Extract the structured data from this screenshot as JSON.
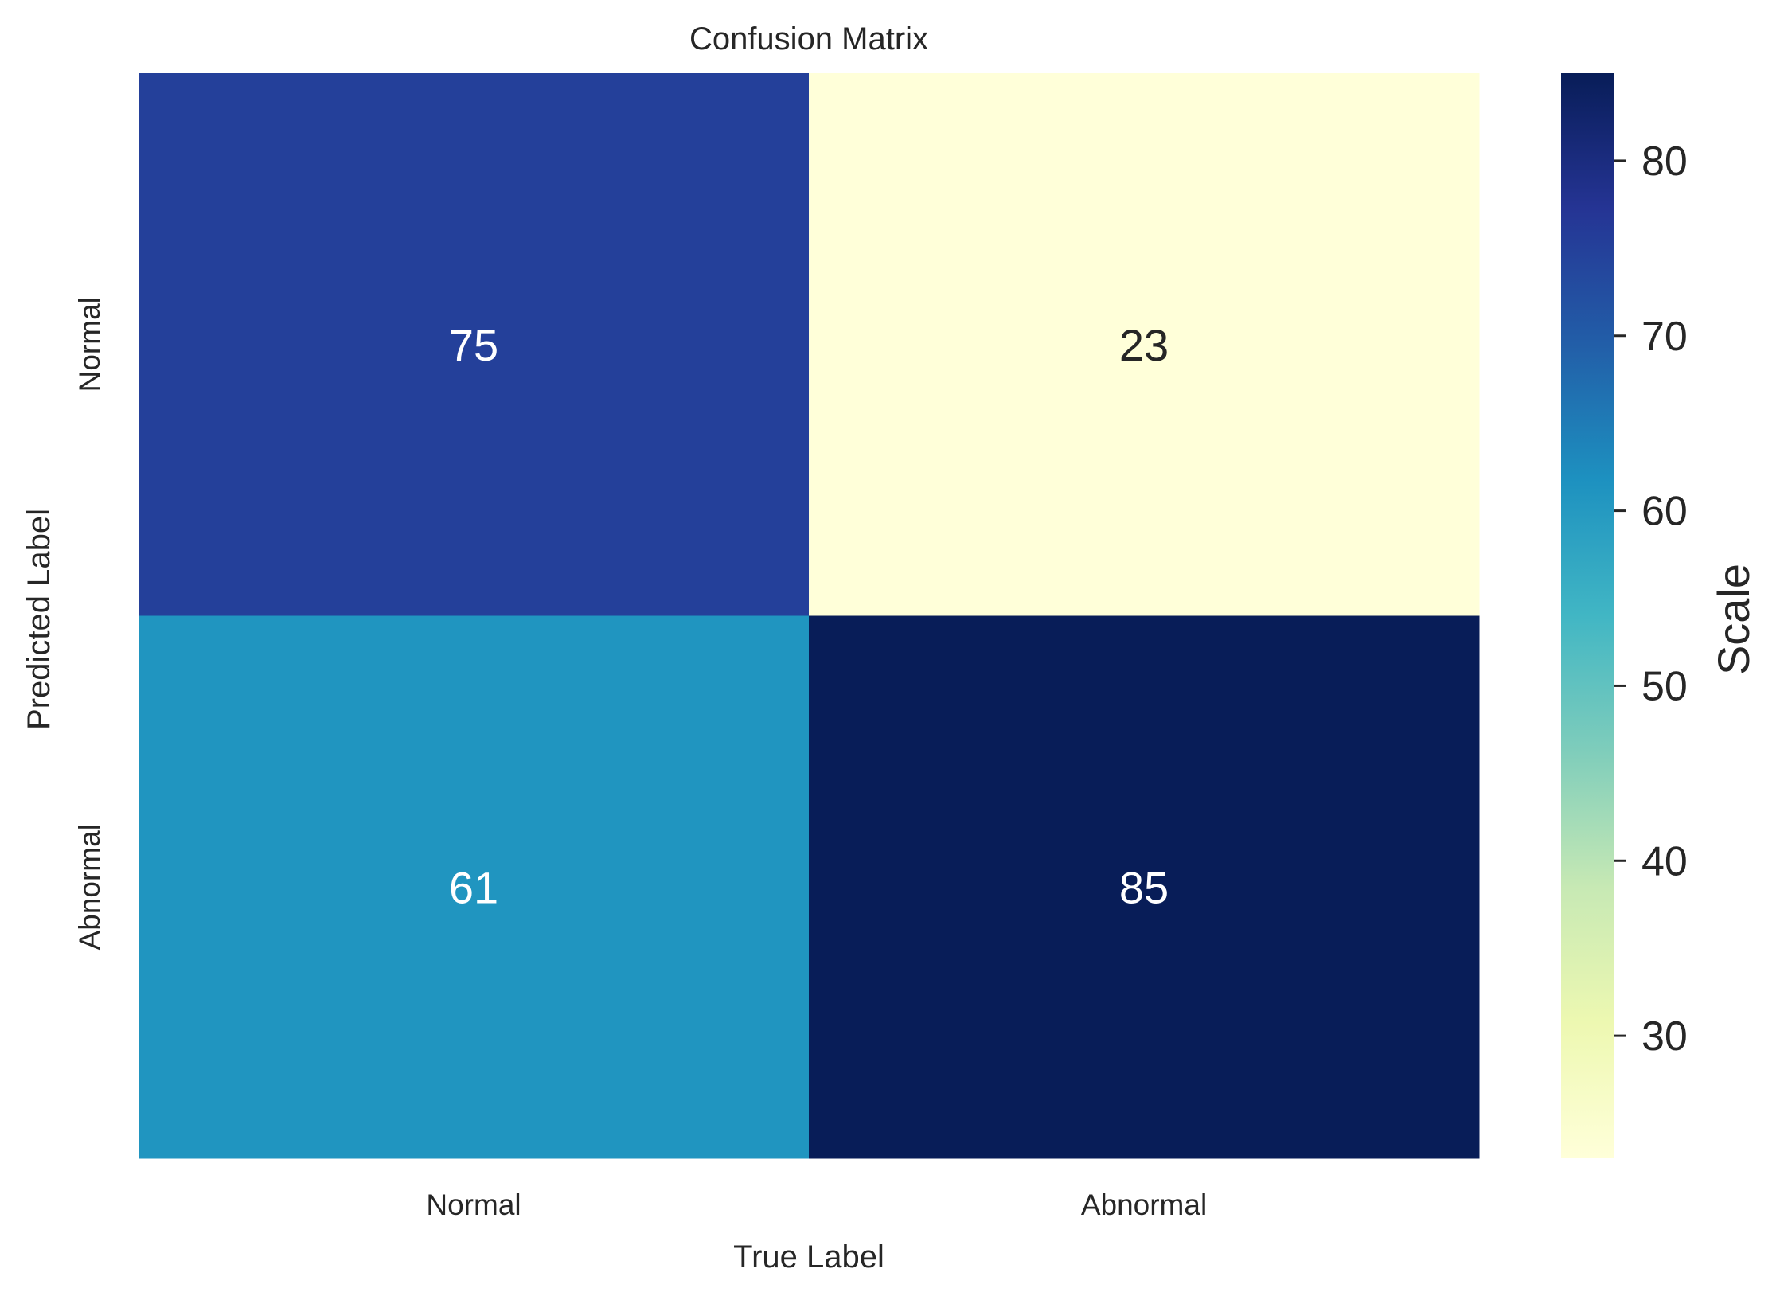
{
  "chart_data": {
    "type": "heatmap",
    "title": "Confusion Matrix",
    "xlabel": "True Label",
    "ylabel": "Predicted Label",
    "x_categories": [
      "Normal",
      "Abnormal"
    ],
    "y_categories": [
      "Normal",
      "Abnormal"
    ],
    "values": [
      [
        75,
        23
      ],
      [
        61,
        85
      ]
    ],
    "colormap": "YlGnBu",
    "colorbar": {
      "label": "Scale",
      "min": 23,
      "max": 85,
      "ticks": [
        "30",
        "40",
        "50",
        "60",
        "70",
        "80"
      ]
    },
    "colors": {
      "low_text": "#262626",
      "high_text": "#ffffff",
      "axis_text": "#262626"
    }
  }
}
